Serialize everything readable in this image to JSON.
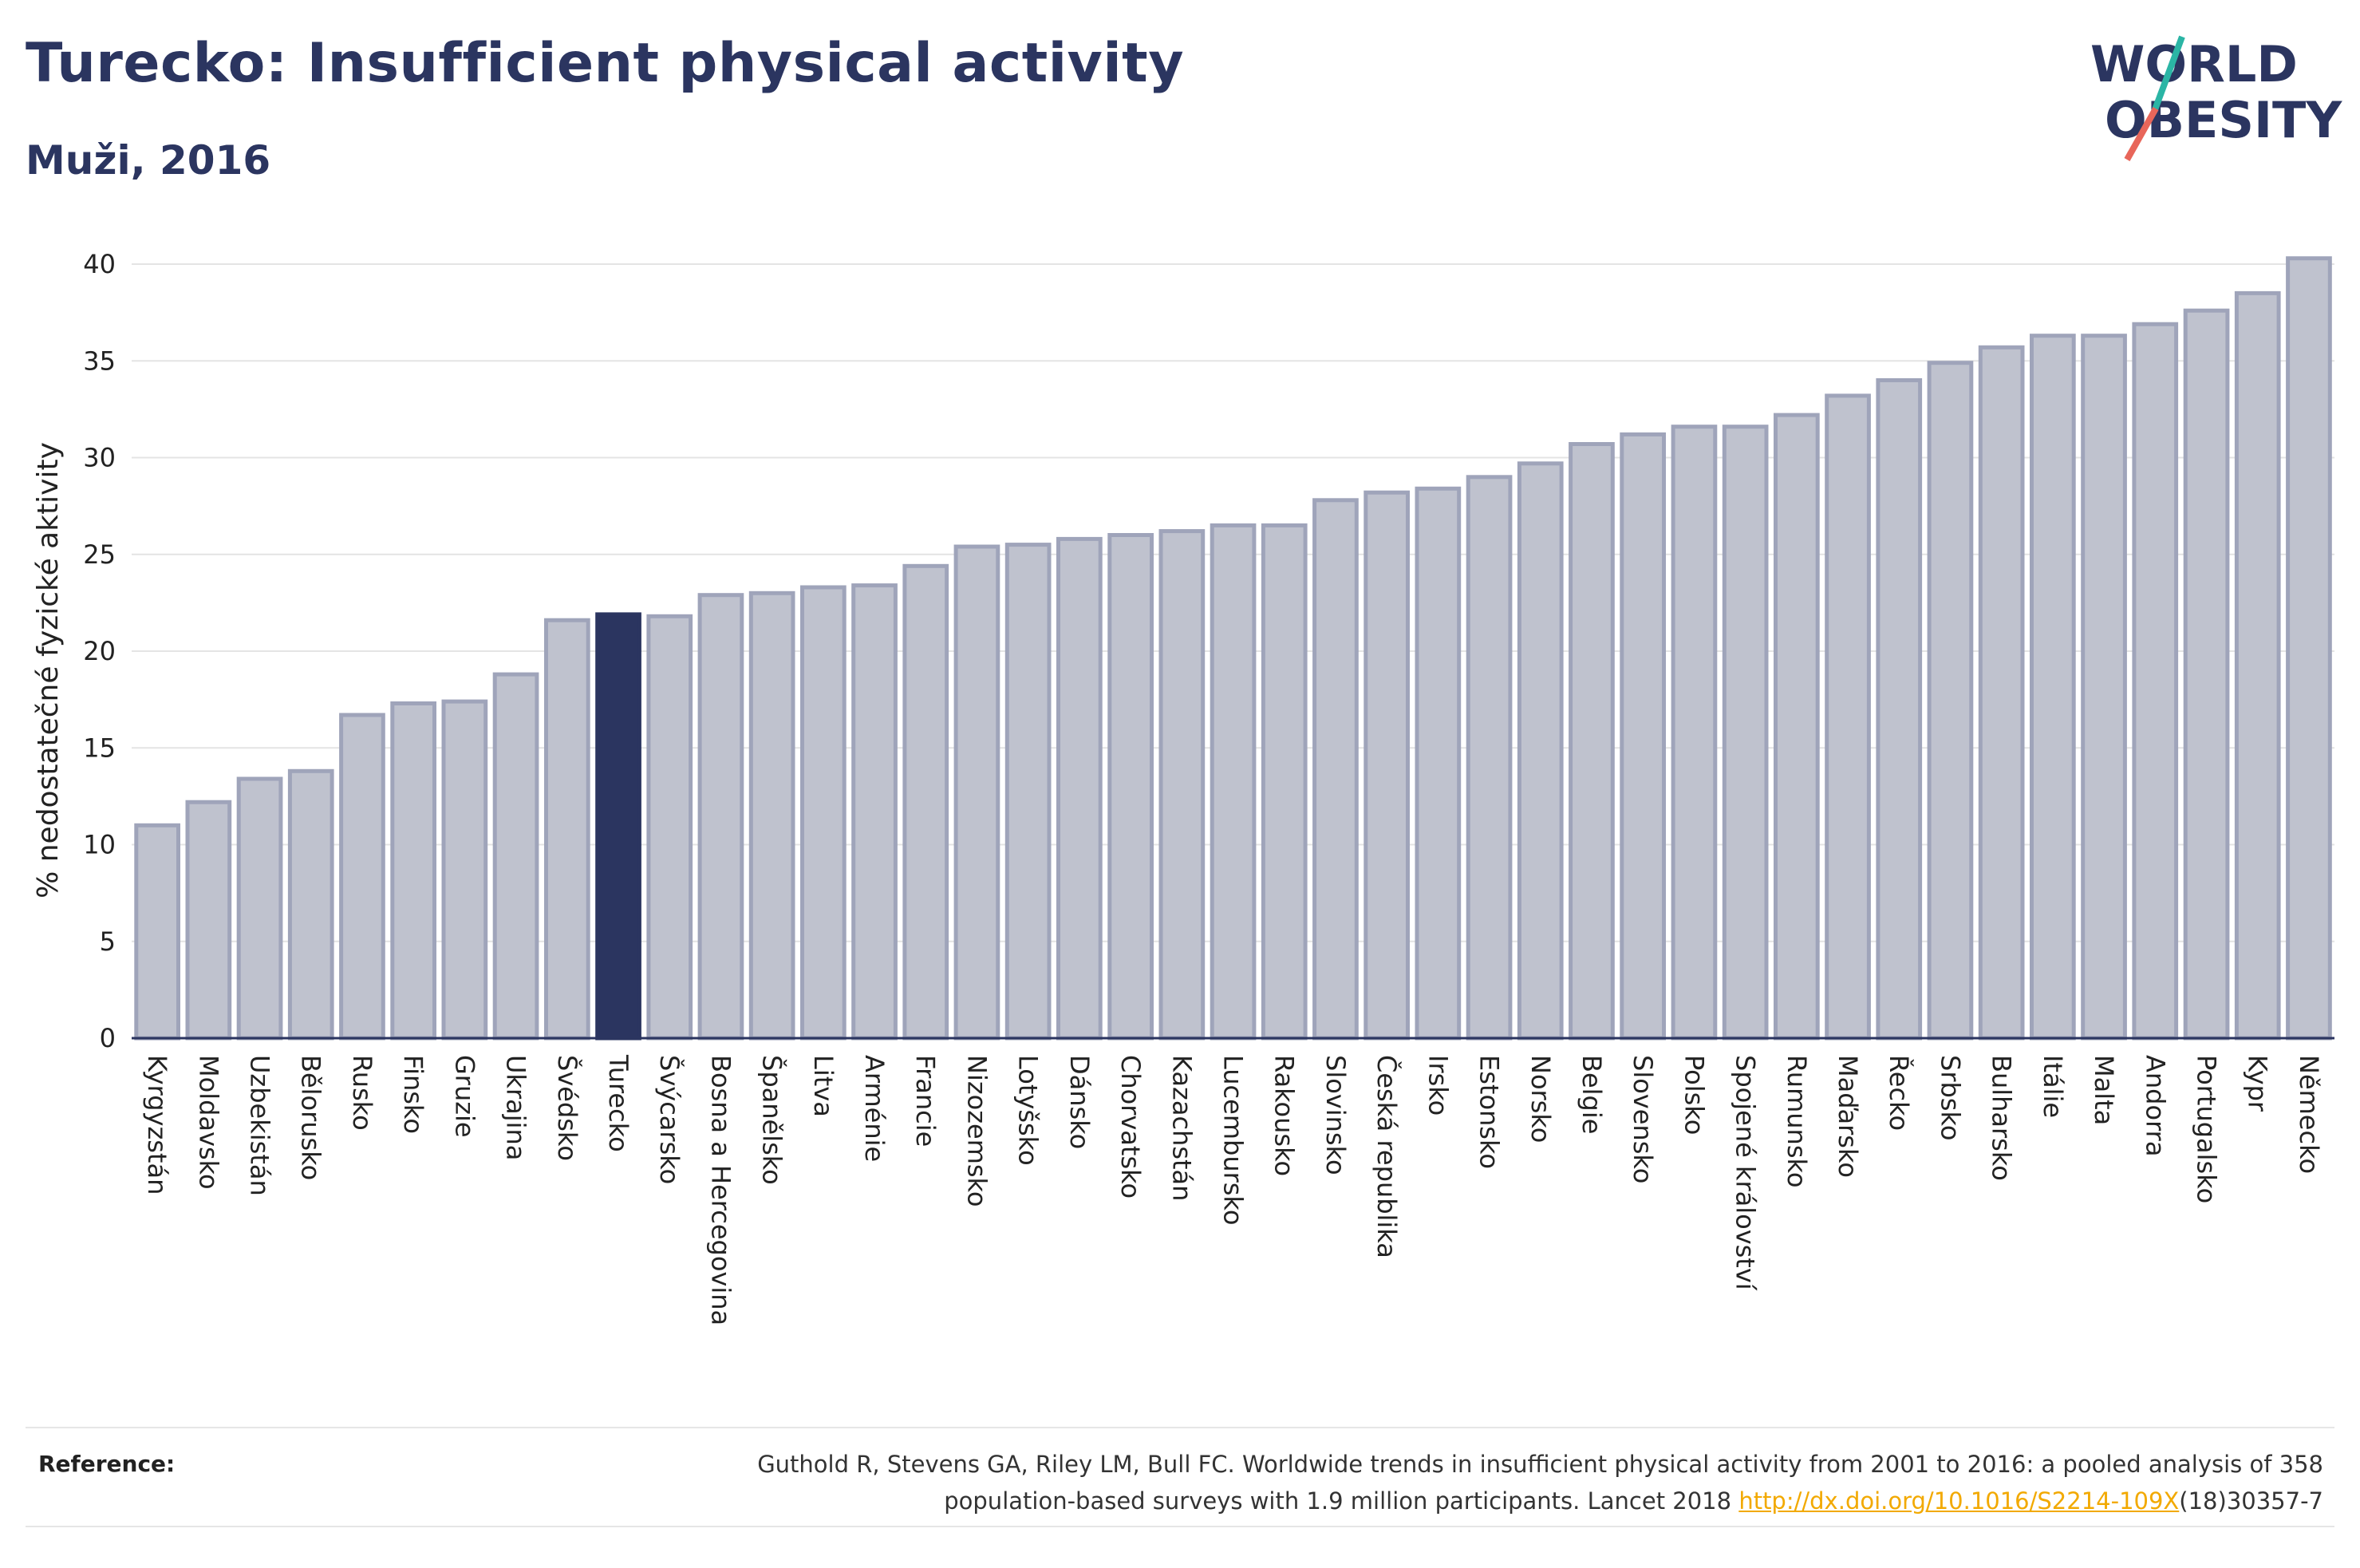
{
  "header": {
    "title": "Turecko: Insufficient physical activity",
    "subtitle": "Muži, 2016"
  },
  "logo": {
    "line1": "WORLD",
    "line2": "OBESITY",
    "colors": {
      "text": "#2b3560",
      "slash_teal": "#2bb5a5",
      "slash_red": "#e8665a"
    }
  },
  "chart_data": {
    "type": "bar",
    "title": "Turecko: Insufficient physical activity",
    "subtitle": "Muži, 2016",
    "xlabel": "",
    "ylabel": "% nedostatečné fyzické aktivity",
    "ylim": [
      0,
      42
    ],
    "yticks": [
      0,
      5,
      10,
      15,
      20,
      25,
      30,
      35,
      40
    ],
    "grid": true,
    "highlight": "Turecko",
    "colors": {
      "bar": "#bfc2ce",
      "bar_edge": "#9fa4ba",
      "highlight": "#2b3560"
    },
    "categories": [
      "Kyrgyzstán",
      "Moldavsko",
      "Uzbekistán",
      "Bělorusko",
      "Rusko",
      "Finsko",
      "Gruzie",
      "Ukrajina",
      "Švédsko",
      "Turecko",
      "Švýcarsko",
      "Bosna a Hercegovina",
      "Španělsko",
      "Litva",
      "Arménie",
      "Francie",
      "Nizozemsko",
      "Lotyšsko",
      "Dánsko",
      "Chorvatsko",
      "Kazachstán",
      "Lucembursko",
      "Rakousko",
      "Slovinsko",
      "Česká republika",
      "Irsko",
      "Estonsko",
      "Norsko",
      "Belgie",
      "Slovensko",
      "Polsko",
      "Spojené království",
      "Rumunsko",
      "Maďarsko",
      "Řecko",
      "Srbsko",
      "Bulharsko",
      "Itálie",
      "Malta",
      "Andorra",
      "Portugalsko",
      "Kypr",
      "Německo"
    ],
    "values": [
      11.0,
      12.2,
      13.4,
      13.8,
      16.7,
      17.3,
      17.4,
      18.8,
      21.6,
      21.9,
      21.8,
      22.9,
      23.0,
      23.3,
      23.4,
      24.4,
      25.4,
      25.5,
      25.8,
      26.0,
      26.2,
      26.5,
      26.5,
      27.8,
      28.2,
      28.4,
      29.0,
      29.7,
      30.7,
      31.2,
      31.6,
      31.6,
      32.2,
      33.2,
      34.0,
      34.9,
      35.7,
      36.3,
      36.3,
      36.9,
      37.6,
      38.5,
      40.3
    ]
  },
  "reference": {
    "label": "Reference:",
    "line1": "Guthold R, Stevens GA, Riley LM, Bull FC. Worldwide trends in insufficient physical activity from 2001 to 2016: a pooled analysis of 358",
    "line2_pre": "population-based surveys with 1.9 million participants. Lancet 2018 ",
    "link": "http://dx.doi.org/10.1016/S2214-109X",
    "line2_post": "(18)30357-7"
  }
}
